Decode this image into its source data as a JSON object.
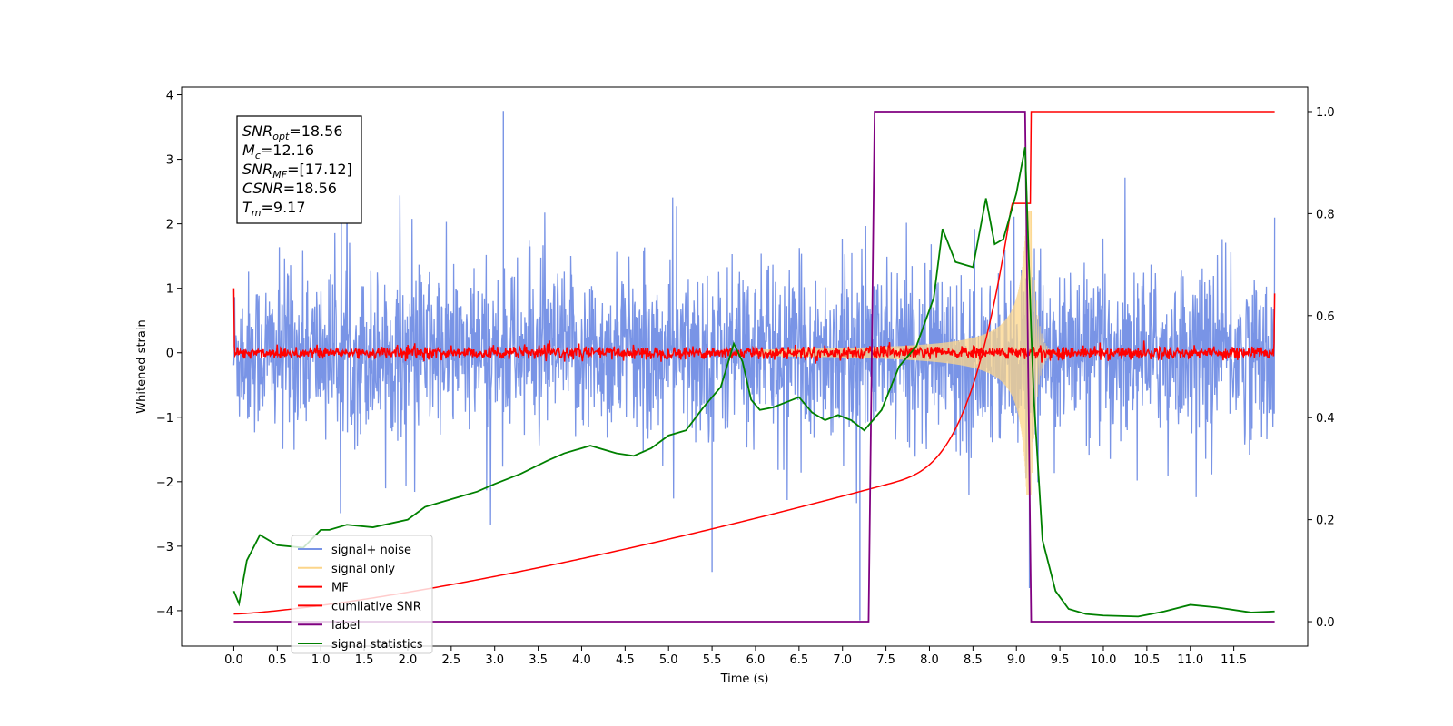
{
  "chart_data": {
    "type": "line",
    "xlabel": "Time (s)",
    "ylabel_left": "Whitened strain",
    "ylabel_right": "",
    "xlim": [
      -0.6,
      12.35
    ],
    "ylim_left": [
      -4.55,
      4.12
    ],
    "ylim_right": [
      -0.048,
      1.048
    ],
    "x_ticks": [
      "0.0",
      "0.5",
      "1.0",
      "1.5",
      "2.0",
      "2.5",
      "3.0",
      "3.5",
      "4.0",
      "4.5",
      "5.0",
      "5.5",
      "6.0",
      "6.5",
      "7.0",
      "7.5",
      "8.0",
      "8.5",
      "9.0",
      "9.5",
      "10.0",
      "10.5",
      "11.0",
      "11.5"
    ],
    "y_ticks_left": [
      "4",
      "3",
      "2",
      "1",
      "0",
      "−1",
      "−2",
      "−3",
      "−4"
    ],
    "y_ticks_right": [
      "1.0",
      "0.8",
      "0.6",
      "0.4",
      "0.2",
      "0.0"
    ],
    "grid": false,
    "legend_position": "lower-left",
    "annotation": {
      "lines": [
        {
          "sym": "SNR",
          "sub": "opt",
          "value": "=18.56"
        },
        {
          "sym": "M",
          "sub": "c",
          "value": "=12.16"
        },
        {
          "sym": "SNR",
          "sub": "MF",
          "value": "=[17.12]"
        },
        {
          "sym": "CSNR",
          "sub": "",
          "value": "=18.56"
        },
        {
          "sym": "T",
          "sub": "m",
          "value": "=9.17"
        }
      ]
    },
    "series": [
      {
        "name": "signal+ noise",
        "color": "#7994e6",
        "axis": "left",
        "description": "noise band",
        "envelope": {
          "upper_typical": 1.55,
          "lower_typical": -1.6,
          "max_peak": 3.75,
          "min_peak": -4.15
        },
        "notable_spikes": [
          {
            "x": 3.1,
            "y": 3.75
          },
          {
            "x": 7.2,
            "y": -4.15
          },
          {
            "x": 9.15,
            "y": -3.65
          },
          {
            "x": 5.5,
            "y": -3.4
          }
        ]
      },
      {
        "name": "signal only",
        "color": "#fcd58a",
        "axis": "left",
        "description": "chirp",
        "chirp": {
          "start_x": 6.0,
          "end_x": 9.17,
          "start_amp": 0.05,
          "peak_amp": 2.2
        }
      },
      {
        "name": "MF",
        "color": "#ff0000",
        "axis": "left",
        "description": "matched-filter output near zero",
        "band_amp": 0.09,
        "edges": [
          {
            "x": 0.0,
            "y": 1.0
          },
          {
            "x": 11.97,
            "y": 0.92
          }
        ]
      },
      {
        "name": "cumilative SNR",
        "color": "#ff0000",
        "axis": "right",
        "x": [
          0.0,
          1.0,
          2.0,
          3.0,
          4.0,
          5.0,
          6.0,
          6.5,
          7.0,
          7.5,
          8.0,
          8.3,
          8.6,
          8.8,
          9.0,
          9.1,
          9.17,
          11.97
        ],
        "y": [
          0.015,
          0.04,
          0.065,
          0.09,
          0.115,
          0.145,
          0.185,
          0.21,
          0.245,
          0.285,
          0.35,
          0.4,
          0.47,
          0.54,
          0.65,
          0.75,
          1.0,
          1.0
        ]
      },
      {
        "name": "label",
        "color": "#800080",
        "axis": "right",
        "x": [
          0.0,
          7.3,
          7.37,
          9.1,
          9.17,
          11.97
        ],
        "y": [
          0.0,
          0.0,
          1.0,
          1.0,
          0.0,
          0.0
        ]
      },
      {
        "name": "signal statistics",
        "color": "#008000",
        "axis": "right",
        "x": [
          0.0,
          0.06,
          0.15,
          0.3,
          0.5,
          0.8,
          1.0,
          1.1,
          1.3,
          1.6,
          2.0,
          2.2,
          2.5,
          2.8,
          3.0,
          3.3,
          3.6,
          3.8,
          4.1,
          4.4,
          4.6,
          4.8,
          5.0,
          5.2,
          5.4,
          5.6,
          5.75,
          5.85,
          5.95,
          6.05,
          6.2,
          6.35,
          6.5,
          6.65,
          6.8,
          6.95,
          7.1,
          7.25,
          7.45,
          7.65,
          7.85,
          8.05,
          8.15,
          8.3,
          8.5,
          8.65,
          8.75,
          8.85,
          9.0,
          9.1,
          9.17,
          9.2,
          9.3,
          9.45,
          9.6,
          9.8,
          10.0,
          10.4,
          10.7,
          11.0,
          11.3,
          11.7,
          11.97
        ],
        "y": [
          0.06,
          0.035,
          0.12,
          0.17,
          0.15,
          0.145,
          0.18,
          0.18,
          0.19,
          0.185,
          0.2,
          0.225,
          0.24,
          0.255,
          0.27,
          0.29,
          0.315,
          0.33,
          0.345,
          0.33,
          0.325,
          0.34,
          0.365,
          0.375,
          0.42,
          0.46,
          0.545,
          0.51,
          0.435,
          0.415,
          0.42,
          0.43,
          0.44,
          0.41,
          0.395,
          0.405,
          0.395,
          0.375,
          0.415,
          0.5,
          0.54,
          0.635,
          0.77,
          0.705,
          0.695,
          0.83,
          0.74,
          0.75,
          0.84,
          0.93,
          0.57,
          0.44,
          0.16,
          0.06,
          0.025,
          0.015,
          0.012,
          0.01,
          0.02,
          0.033,
          0.028,
          0.018,
          0.02
        ]
      }
    ]
  }
}
